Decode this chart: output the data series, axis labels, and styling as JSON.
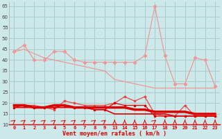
{
  "bg_color": "#cce8e8",
  "grid_color": "#aacccc",
  "xlabel": "Vent moyen/en rafales ( km/h )",
  "ylim": [
    10,
    67
  ],
  "yticks": [
    10,
    15,
    20,
    25,
    30,
    35,
    40,
    45,
    50,
    55,
    60,
    65
  ],
  "x_positions": [
    0,
    1,
    2,
    3,
    4,
    5,
    6,
    7,
    8,
    9,
    10,
    11,
    12,
    13,
    14,
    15,
    16,
    17,
    18,
    19,
    20
  ],
  "xtick_labels": [
    "0",
    "1",
    "2",
    "3",
    "4",
    "5",
    "6",
    "7",
    "8",
    "9",
    "13",
    "14",
    "15",
    "16",
    "17",
    "18",
    "19",
    "20",
    "21",
    "22",
    "23"
  ],
  "col_bright_red": "#dd0000",
  "col_medium_red": "#ee4444",
  "col_light_pink": "#ee9999",
  "col_pale_pink": "#ffbbbb",
  "gust_line_y": [
    44,
    47,
    40,
    40,
    44,
    44,
    40,
    39,
    39,
    39,
    39,
    39,
    39,
    42,
    65,
    42,
    29,
    29,
    41,
    40,
    28
  ],
  "trend_line_y": [
    44,
    45,
    43,
    41,
    40,
    39,
    38,
    37,
    36,
    35,
    31,
    30,
    29,
    28,
    27,
    27,
    27,
    27,
    27,
    27,
    27
  ],
  "avg_line1_y": [
    19,
    19,
    19,
    18,
    17,
    21,
    20,
    19,
    19,
    19,
    20,
    23,
    21,
    23,
    15,
    14,
    14,
    19,
    14,
    14,
    14
  ],
  "avg_line2_y": [
    18,
    19,
    18,
    18,
    18,
    19,
    18,
    18,
    17,
    17,
    20,
    19,
    19,
    19,
    14,
    14,
    14,
    14,
    14,
    14,
    14
  ],
  "avg_thick_y": [
    19,
    19,
    18,
    18,
    19,
    19,
    18,
    18,
    18,
    18,
    18,
    18,
    17,
    17,
    16,
    16,
    16,
    16,
    15,
    15,
    15
  ],
  "avg_flat_y": [
    18,
    18,
    18,
    18,
    18,
    18,
    18,
    18,
    17,
    17,
    15,
    15,
    15,
    15,
    15,
    15,
    14,
    14,
    14,
    14,
    14
  ],
  "wind_dirs_slant": [
    1,
    1,
    1,
    1,
    1,
    1,
    1,
    1,
    1,
    1,
    0,
    0,
    0,
    0,
    1,
    0,
    0,
    0,
    0,
    0,
    0
  ]
}
